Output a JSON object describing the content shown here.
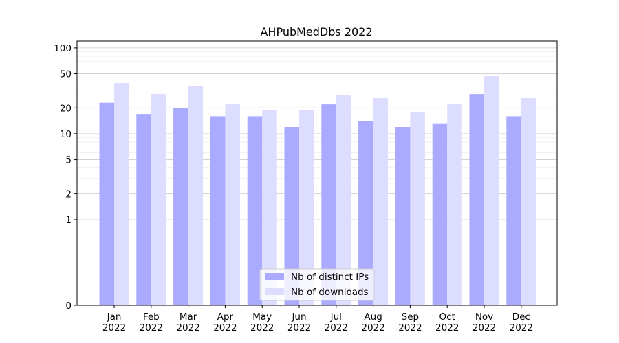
{
  "chart_data": {
    "type": "bar",
    "title": "AHPubMedDbs 2022",
    "xlabel": "",
    "ylabel": "",
    "y_scale": "symlog",
    "ylim": [
      0,
      120
    ],
    "y_ticks": [
      0,
      1,
      2,
      5,
      10,
      20,
      50,
      100
    ],
    "y_tick_labels": [
      "0",
      "1",
      "2",
      "5",
      "10",
      "20",
      "50",
      "100"
    ],
    "grid": "horizontal",
    "legend_position": "bottom-center",
    "categories": [
      {
        "month": "Jan",
        "year": "2022"
      },
      {
        "month": "Feb",
        "year": "2022"
      },
      {
        "month": "Mar",
        "year": "2022"
      },
      {
        "month": "Apr",
        "year": "2022"
      },
      {
        "month": "May",
        "year": "2022"
      },
      {
        "month": "Jun",
        "year": "2022"
      },
      {
        "month": "Jul",
        "year": "2022"
      },
      {
        "month": "Aug",
        "year": "2022"
      },
      {
        "month": "Sep",
        "year": "2022"
      },
      {
        "month": "Oct",
        "year": "2022"
      },
      {
        "month": "Nov",
        "year": "2022"
      },
      {
        "month": "Dec",
        "year": "2022"
      }
    ],
    "series": [
      {
        "name": "Nb of distinct IPs",
        "color": "#aaaaff",
        "values": [
          23,
          17,
          20,
          16,
          16,
          12,
          22,
          14,
          12,
          13,
          29,
          16
        ]
      },
      {
        "name": "Nb of downloads",
        "color": "#ddddff",
        "values": [
          39,
          29,
          36,
          22,
          19,
          19,
          28,
          26,
          18,
          22,
          47,
          26
        ]
      }
    ]
  }
}
